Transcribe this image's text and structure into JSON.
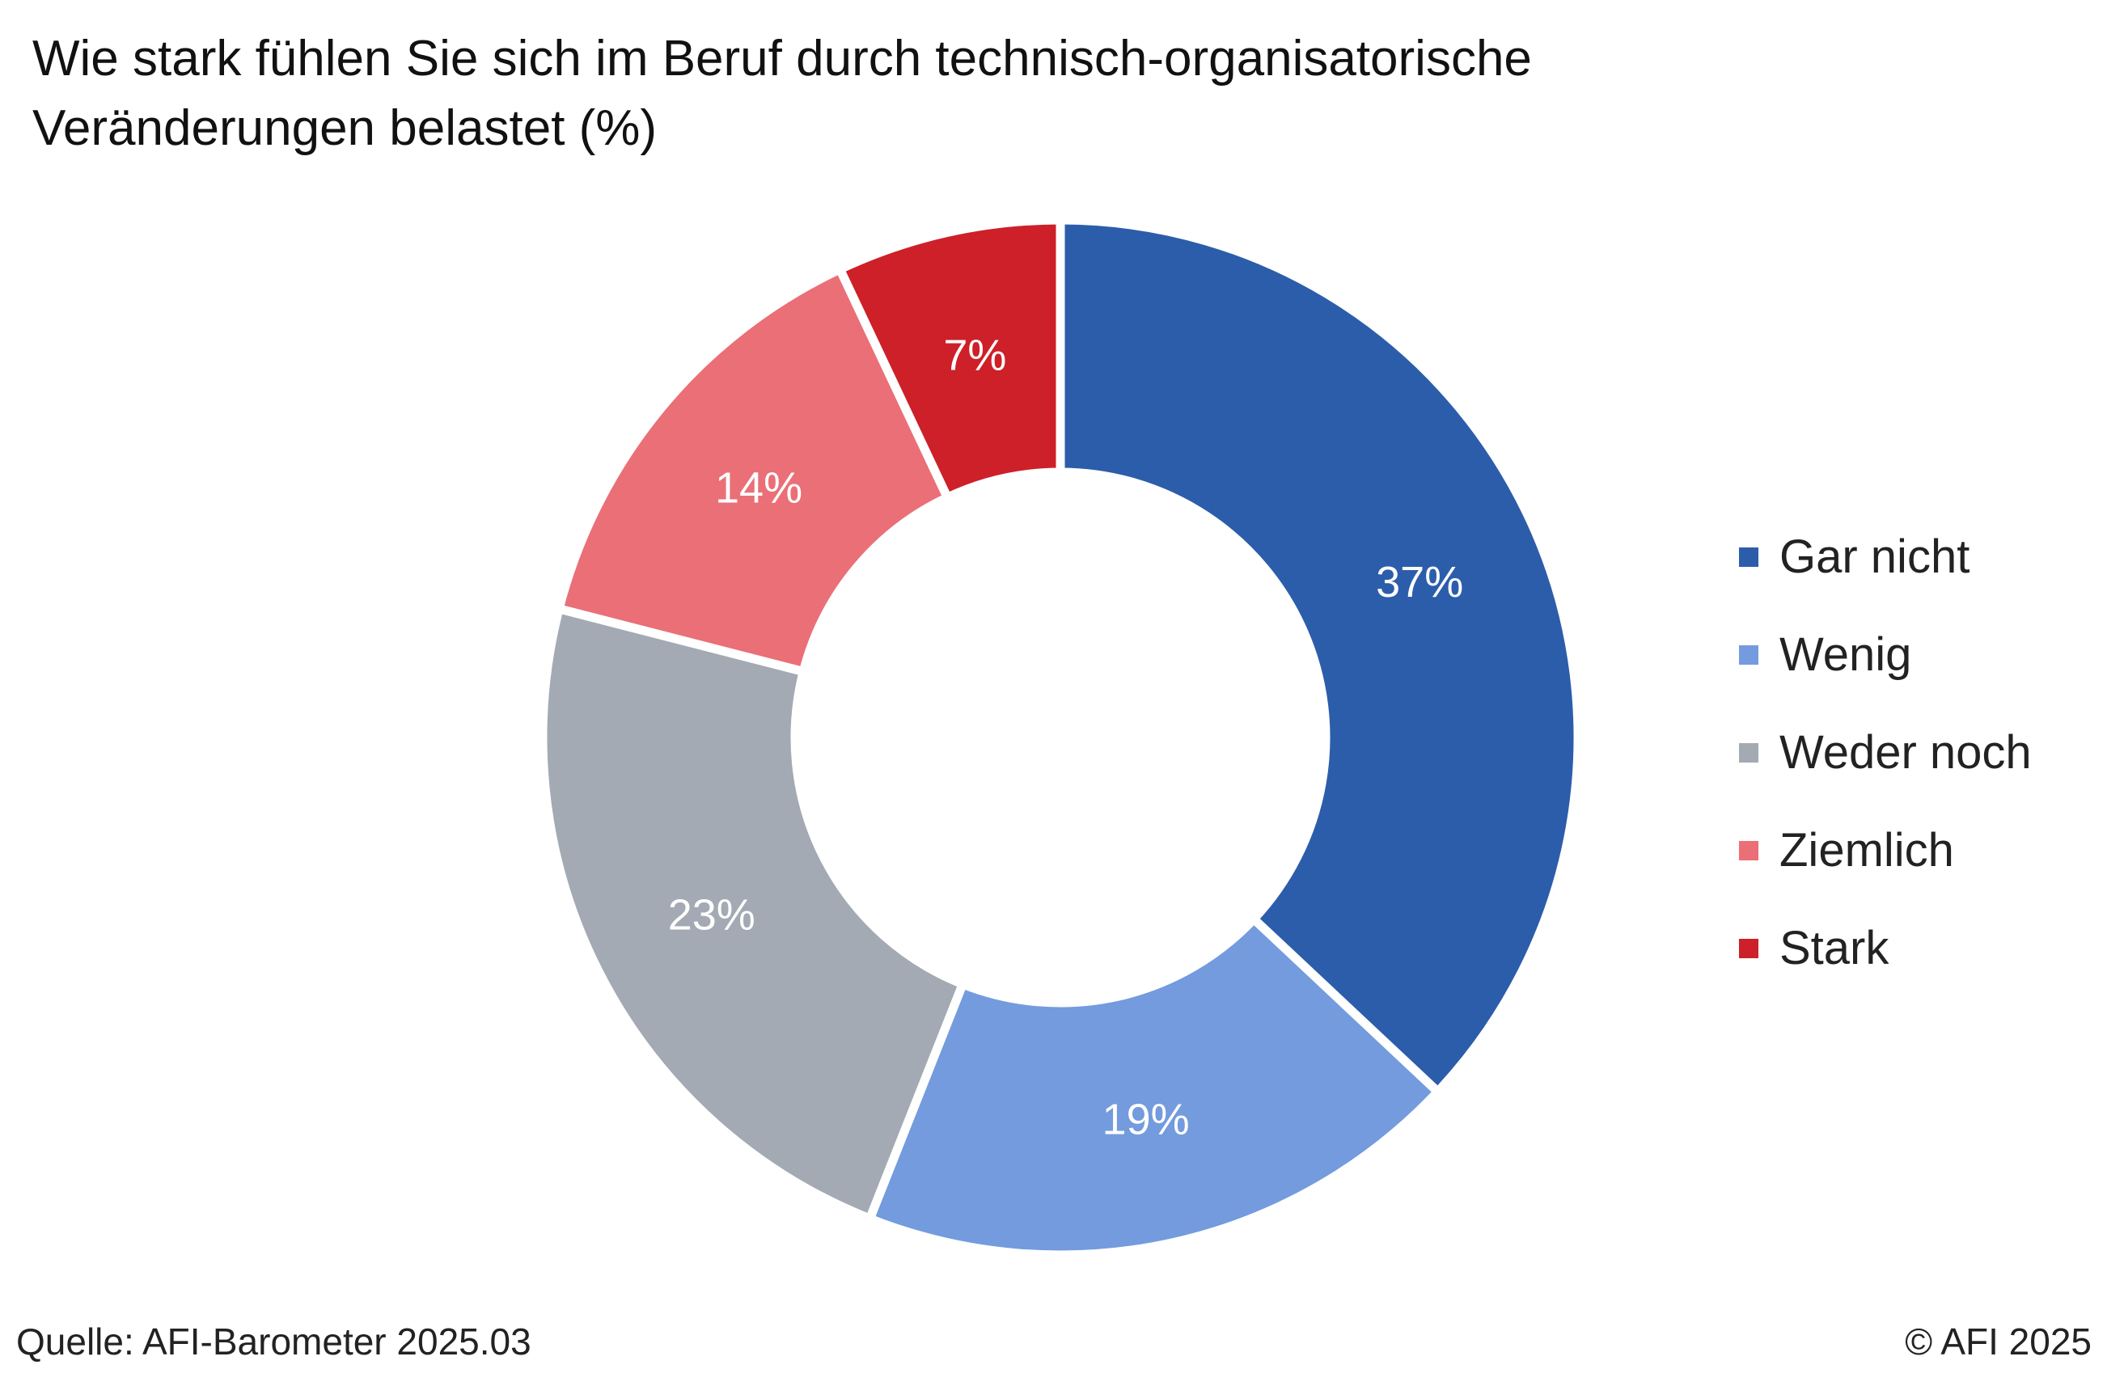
{
  "title": "Wie stark fühlen Sie sich im Beruf durch technisch-organisatorische Veränderungen belastet (%)",
  "source": "Quelle: AFI-Barometer 2025.03",
  "copyright": "© AFI 2025",
  "chart_data": {
    "type": "pie",
    "variant": "donut",
    "title": "Wie stark fühlen Sie sich im Beruf durch technisch-organisatorische Veränderungen belastet (%)",
    "categories": [
      "Gar nicht",
      "Wenig",
      "Weder noch",
      "Ziemlich",
      "Stark"
    ],
    "values": [
      37,
      19,
      23,
      14,
      7
    ],
    "labels": [
      "37%",
      "19%",
      "23%",
      "14%",
      "7%"
    ],
    "colors": [
      "#2C5DAB",
      "#739BDE",
      "#A3AAB3",
      "#EA6F77",
      "#CD2029"
    ],
    "legend_position": "right"
  }
}
